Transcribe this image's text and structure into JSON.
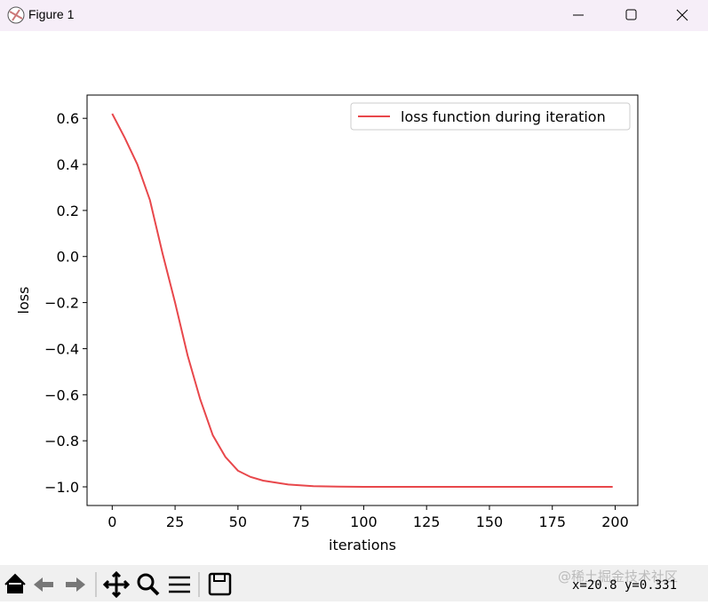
{
  "window": {
    "title": "Figure 1",
    "status": "x=20.8 y=0.331",
    "watermark": "@稀土掘金技术社区"
  },
  "chart_data": {
    "type": "line",
    "xlabel": "iterations",
    "ylabel": "loss",
    "x": [
      0,
      5,
      10,
      15,
      20,
      25,
      30,
      35,
      40,
      45,
      50,
      55,
      60,
      70,
      80,
      90,
      100,
      125,
      150,
      175,
      199
    ],
    "series": [
      {
        "name": "loss function during iteration",
        "color": "#e8474b",
        "values": [
          0.62,
          0.515,
          0.4,
          0.245,
          0.014,
          -0.2,
          -0.43,
          -0.62,
          -0.776,
          -0.87,
          -0.93,
          -0.957,
          -0.973,
          -0.99,
          -0.997,
          -0.999,
          -1.0,
          -1.0,
          -1.0,
          -1.0,
          -1.0
        ]
      }
    ],
    "xlim": [
      -10,
      209
    ],
    "ylim": [
      -1.081,
      0.701
    ],
    "xticks": [
      0,
      25,
      50,
      75,
      100,
      125,
      150,
      175,
      200
    ],
    "yticks": [
      {
        "value": -1.0,
        "label": "−1.0"
      },
      {
        "value": -0.8,
        "label": "−0.8"
      },
      {
        "value": -0.6,
        "label": "−0.6"
      },
      {
        "value": -0.4,
        "label": "−0.4"
      },
      {
        "value": -0.2,
        "label": "−0.2"
      },
      {
        "value": 0,
        "label": "0.0"
      },
      0.2,
      0.4,
      0.6
    ],
    "grid": false,
    "legend": "upper right"
  }
}
